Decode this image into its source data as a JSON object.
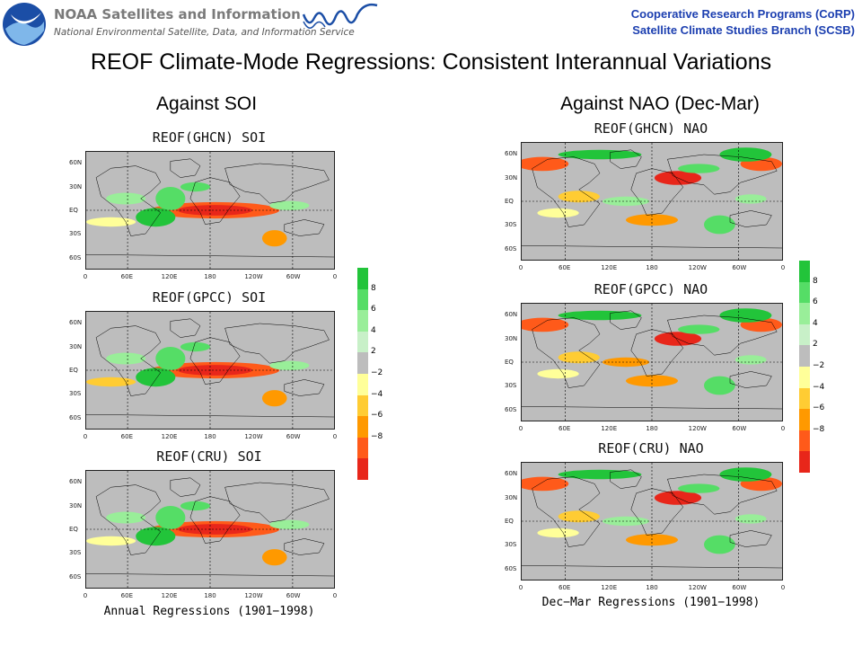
{
  "header": {
    "org_name": "NOAA Satellites and Information",
    "org_sub": "National Environmental Satellite, Data, and Information Service",
    "program_1": "Cooperative Research Programs (CoRP)",
    "program_2": "Satellite Climate Studies Branch (SCSB)"
  },
  "title": "REOF Climate-Mode Regressions: Consistent Interannual Variations",
  "columns": [
    {
      "heading": "Against SOI",
      "maps": [
        {
          "title": "REOF(GHCN) SOI"
        },
        {
          "title": "REOF(GPCC) SOI"
        },
        {
          "title": "REOF(CRU) SOI"
        }
      ],
      "footer": "Annual Regressions (1901−1998)"
    },
    {
      "heading": "Against NAO (Dec-Mar)",
      "maps": [
        {
          "title": "REOF(GHCN) NAO"
        },
        {
          "title": "REOF(GPCC) NAO"
        },
        {
          "title": "REOF(CRU) NAO"
        }
      ],
      "footer": "Dec−Mar Regressions (1901−1998)"
    }
  ],
  "axes": {
    "lat_ticks": [
      "60N",
      "30N",
      "EQ",
      "30S",
      "60S"
    ],
    "lon_ticks": [
      "0",
      "60E",
      "120E",
      "180",
      "120W",
      "60W",
      "0"
    ]
  },
  "colorbar": {
    "labels": [
      "8",
      "6",
      "4",
      "2",
      "−2",
      "−4",
      "−6",
      "−8"
    ],
    "colors": [
      "#22c43a",
      "#55dd66",
      "#99ee99",
      "#c8f0c8",
      "#bdbdbd",
      "#ffff99",
      "#ffcc33",
      "#ff9900",
      "#ff5a1a",
      "#e8261a"
    ]
  },
  "colors": {
    "land": "#bdbdbd",
    "program_text": "#1c3fb0",
    "noaa_blue": "#1b4ea6"
  }
}
